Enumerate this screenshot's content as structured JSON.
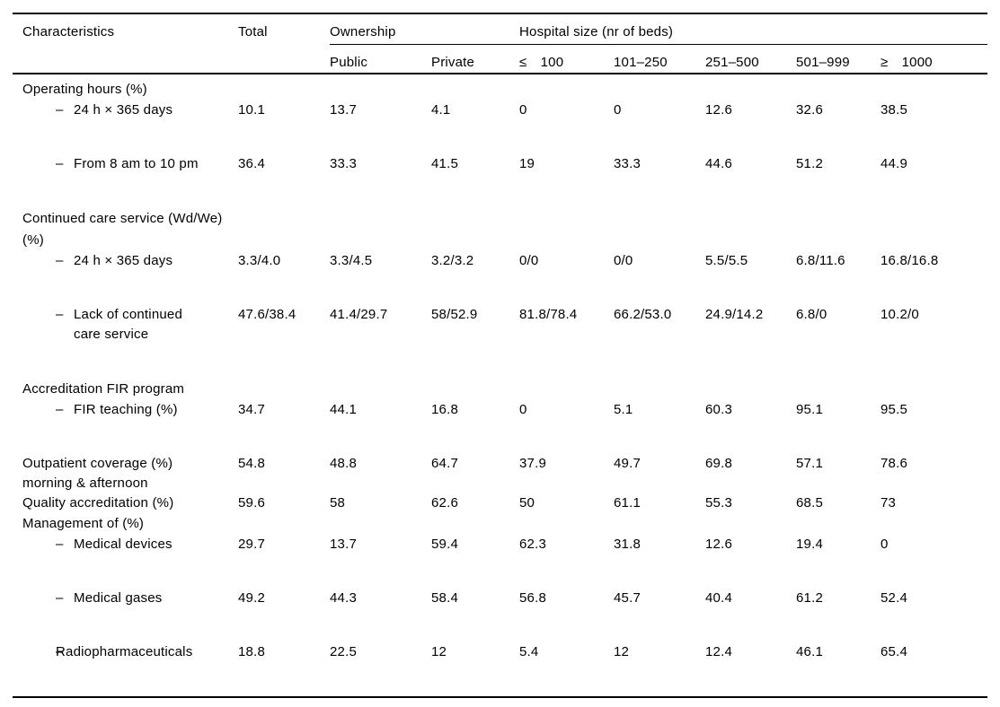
{
  "page": {
    "background": "#ffffff",
    "text_color": "#000000",
    "rule_color": "#000000"
  },
  "table": {
    "dash_glyph": "–",
    "header": {
      "characteristics": "Characteristics",
      "total": "Total",
      "groups": [
        {
          "label": "Ownership"
        },
        {
          "label": "Hospital size (nr of beds)"
        }
      ],
      "subcolumns": [
        "Public",
        "Private",
        "≤ 100",
        "101–250",
        "251–500",
        "501–999",
        "≥ 1000"
      ]
    },
    "rows": [
      {
        "type": "section",
        "label": "Operating hours (%)",
        "values": [],
        "gap": false
      },
      {
        "type": "item",
        "label": "24 h × 365 days",
        "values": [
          "10.1",
          "13.7",
          "4.1",
          "0",
          "0",
          "12.6",
          "32.6",
          "38.5"
        ],
        "gap": true
      },
      {
        "type": "item",
        "label": "From 8 am to 10 pm",
        "values": [
          "36.4",
          "33.3",
          "41.5",
          "19",
          "33.3",
          "44.6",
          "51.2",
          "44.9"
        ],
        "gap": true
      },
      {
        "type": "section",
        "label": "Continued care service (Wd/We) (%)",
        "values": [],
        "gap": false
      },
      {
        "type": "item",
        "label": "24 h × 365 days",
        "values": [
          "3.3/4.0",
          "3.3/4.5",
          "3.2/3.2",
          "0/0",
          "0/0",
          "5.5/5.5",
          "6.8/11.6",
          "16.8/16.8"
        ],
        "gap": true
      },
      {
        "type": "item",
        "label": "Lack of continued\ncare service",
        "values": [
          "47.6/38.4",
          "41.4/29.7",
          "58/52.9",
          "81.8/78.4",
          "66.2/53.0",
          "24.9/14.2",
          "6.8/0",
          "10.2/0"
        ],
        "gap": true
      },
      {
        "type": "section",
        "label": "Accreditation FIR program",
        "values": [],
        "gap": false
      },
      {
        "type": "item",
        "label": "FIR teaching (%)",
        "values": [
          "34.7",
          "44.1",
          "16.8",
          "0",
          "5.1",
          "60.3",
          "95.1",
          "95.5"
        ],
        "gap": true
      },
      {
        "type": "plain",
        "label": "Outpatient coverage (%)\nmorning & afternoon",
        "values": [
          "54.8",
          "48.8",
          "64.7",
          "37.9",
          "49.7",
          "69.8",
          "57.1",
          "78.6"
        ],
        "gap": false
      },
      {
        "type": "plain",
        "label": "Quality accreditation (%)",
        "values": [
          "59.6",
          "58",
          "62.6",
          "50",
          "61.1",
          "55.3",
          "68.5",
          "73"
        ],
        "gap": false
      },
      {
        "type": "section",
        "label": "Management of (%)",
        "values": [],
        "gap": false
      },
      {
        "type": "item",
        "label": "Medical devices",
        "values": [
          "29.7",
          "13.7",
          "59.4",
          "62.3",
          "31.8",
          "12.6",
          "19.4",
          "0"
        ],
        "gap": true
      },
      {
        "type": "item",
        "label": "Medical gases",
        "values": [
          "49.2",
          "44.3",
          "58.4",
          "56.8",
          "45.7",
          "40.4",
          "61.2",
          "52.4"
        ],
        "gap": true
      },
      {
        "type": "item",
        "label": "",
        "label2": "Radiopharmaceuticals",
        "values": [
          "18.8",
          "22.5",
          "12",
          "5.4",
          "12",
          "12.4",
          "46.1",
          "65.4"
        ],
        "gap": true
      }
    ]
  }
}
